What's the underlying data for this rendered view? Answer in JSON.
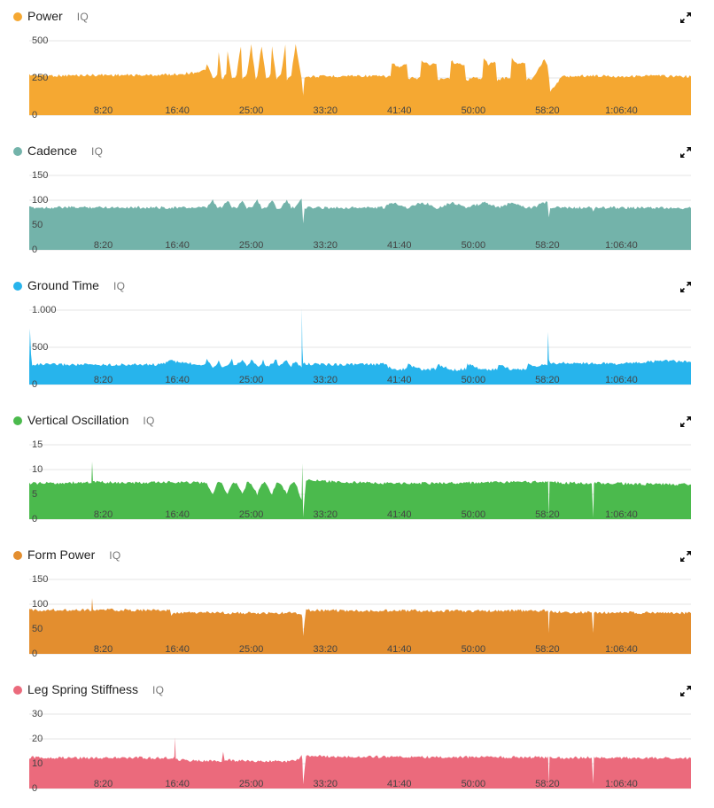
{
  "time_axis": {
    "labels": [
      "8:20",
      "16:40",
      "25:00",
      "33:20",
      "41:40",
      "50:00",
      "58:20",
      "1:06:40"
    ],
    "values_seconds": [
      500,
      1000,
      1500,
      2000,
      2500,
      3000,
      3500,
      4000
    ],
    "xlim_seconds": [
      0,
      4470
    ]
  },
  "iq_label": "IQ",
  "chart_data": [
    {
      "type": "area",
      "title": "Power",
      "color": "#F5A832",
      "ylim": [
        0,
        500
      ],
      "yticks": [
        0,
        250,
        500
      ],
      "ytick_labels": [
        "0",
        "250",
        "500"
      ],
      "x": [
        0,
        200,
        500,
        800,
        1000,
        1100,
        1190,
        1200,
        1240,
        1270,
        1280,
        1300,
        1330,
        1340,
        1370,
        1400,
        1430,
        1440,
        1470,
        1500,
        1530,
        1540,
        1570,
        1600,
        1630,
        1640,
        1670,
        1700,
        1730,
        1740,
        1770,
        1800,
        1840,
        1850,
        1860,
        1880,
        2000,
        2200,
        2400,
        2440,
        2450,
        2500,
        2550,
        2560,
        2600,
        2640,
        2650,
        2700,
        2750,
        2760,
        2800,
        2840,
        2850,
        2900,
        2940,
        2950,
        3000,
        3060,
        3070,
        3100,
        3150,
        3160,
        3200,
        3250,
        3260,
        3300,
        3350,
        3360,
        3400,
        3480,
        3500,
        3510,
        3520,
        3600,
        3800,
        4000,
        4200,
        4400,
        4470
      ],
      "y": [
        270,
        265,
        270,
        268,
        275,
        285,
        300,
        350,
        240,
        270,
        420,
        240,
        270,
        430,
        240,
        270,
        470,
        240,
        270,
        470,
        240,
        270,
        470,
        240,
        270,
        470,
        240,
        270,
        470,
        240,
        270,
        480,
        250,
        140,
        250,
        260,
        260,
        265,
        260,
        260,
        350,
        320,
        340,
        245,
        250,
        250,
        370,
        340,
        345,
        235,
        250,
        250,
        365,
        340,
        345,
        235,
        250,
        250,
        385,
        340,
        355,
        235,
        250,
        250,
        385,
        340,
        355,
        235,
        250,
        380,
        340,
        250,
        160,
        260,
        265,
        260,
        265,
        260,
        260
      ]
    },
    {
      "type": "area",
      "title": "Cadence",
      "color": "#73B3AA",
      "ylim": [
        0,
        150
      ],
      "yticks": [
        0,
        50,
        100,
        150
      ],
      "ytick_labels": [
        "0",
        "50",
        "100",
        "150"
      ],
      "x": [
        0,
        500,
        1000,
        1190,
        1200,
        1240,
        1270,
        1280,
        1300,
        1340,
        1370,
        1380,
        1400,
        1440,
        1470,
        1480,
        1500,
        1540,
        1570,
        1580,
        1600,
        1640,
        1670,
        1680,
        1700,
        1740,
        1770,
        1780,
        1800,
        1840,
        1850,
        1860,
        1880,
        2400,
        2450,
        2500,
        2550,
        2560,
        2650,
        2700,
        2750,
        2760,
        2850,
        2900,
        2950,
        2960,
        3070,
        3120,
        3160,
        3170,
        3260,
        3310,
        3360,
        3370,
        3400,
        3500,
        3510,
        3520,
        3600,
        3800,
        3810,
        3820,
        4000,
        4470
      ],
      "y": [
        85,
        86,
        85,
        85,
        85,
        100,
        85,
        85,
        85,
        100,
        85,
        85,
        85,
        100,
        85,
        85,
        85,
        100,
        85,
        85,
        85,
        100,
        85,
        85,
        85,
        100,
        85,
        85,
        85,
        105,
        55,
        85,
        85,
        85,
        95,
        92,
        85,
        85,
        95,
        92,
        85,
        85,
        95,
        92,
        85,
        85,
        95,
        92,
        85,
        85,
        95,
        92,
        85,
        85,
        85,
        97,
        65,
        85,
        85,
        85,
        75,
        85,
        85,
        84
      ]
    },
    {
      "type": "area",
      "title": "Ground Time",
      "color": "#27B4EC",
      "ylim": [
        0,
        1000
      ],
      "yticks": [
        0,
        500,
        1000
      ],
      "ytick_labels": [
        "0",
        "500",
        "1.000"
      ],
      "x": [
        0,
        5,
        12,
        20,
        500,
        900,
        950,
        1000,
        1150,
        1190,
        1200,
        1240,
        1270,
        1280,
        1300,
        1340,
        1370,
        1380,
        1400,
        1440,
        1470,
        1480,
        1500,
        1540,
        1570,
        1580,
        1600,
        1640,
        1670,
        1680,
        1700,
        1740,
        1770,
        1780,
        1800,
        1840,
        1842,
        1845,
        1850,
        1880,
        2000,
        2300,
        2400,
        2450,
        2500,
        2550,
        2560,
        2650,
        2700,
        2750,
        2760,
        2850,
        2900,
        2950,
        2960,
        3070,
        3120,
        3160,
        3170,
        3260,
        3310,
        3360,
        3370,
        3400,
        3500,
        3505,
        3510,
        3520,
        3600,
        4000,
        4300,
        4470
      ],
      "y": [
        280,
        750,
        400,
        270,
        265,
        270,
        330,
        300,
        270,
        280,
        340,
        240,
        270,
        330,
        240,
        270,
        340,
        240,
        270,
        330,
        240,
        270,
        340,
        240,
        270,
        330,
        240,
        270,
        340,
        240,
        270,
        330,
        240,
        270,
        300,
        240,
        1000,
        500,
        280,
        275,
        270,
        270,
        275,
        200,
        200,
        210,
        270,
        200,
        200,
        210,
        270,
        200,
        200,
        210,
        270,
        200,
        200,
        210,
        270,
        200,
        200,
        210,
        270,
        250,
        270,
        690,
        350,
        280,
        290,
        280,
        320,
        300
      ]
    },
    {
      "type": "area",
      "title": "Vertical Oscillation",
      "color": "#4BBA4D",
      "ylim": [
        0,
        15
      ],
      "yticks": [
        0,
        5,
        10,
        15
      ],
      "ytick_labels": [
        "0",
        "5",
        "10",
        "15"
      ],
      "x": [
        0,
        200,
        420,
        425,
        430,
        700,
        1000,
        1190,
        1200,
        1240,
        1270,
        1280,
        1300,
        1340,
        1370,
        1380,
        1400,
        1440,
        1470,
        1480,
        1500,
        1540,
        1570,
        1580,
        1600,
        1640,
        1670,
        1680,
        1700,
        1740,
        1770,
        1780,
        1800,
        1840,
        1845,
        1850,
        1870,
        1900,
        2200,
        2500,
        2800,
        3100,
        3400,
        3505,
        3510,
        3515,
        3600,
        3800,
        3810,
        3815,
        3830,
        3850,
        4100,
        4470
      ],
      "y": [
        7.2,
        7.3,
        7.4,
        11.5,
        7.5,
        7.3,
        7.5,
        7.3,
        7.3,
        5.0,
        7.3,
        7.3,
        7.3,
        5.0,
        7.3,
        7.3,
        7.3,
        5.0,
        7.3,
        7.3,
        7.3,
        5.0,
        7.3,
        7.3,
        7.3,
        5.0,
        7.3,
        7.3,
        7.3,
        5.0,
        7.3,
        7.3,
        7.3,
        4.0,
        11.0,
        0.5,
        8.0,
        7.8,
        7.4,
        7.2,
        7.3,
        7.4,
        7.5,
        7.6,
        0.5,
        7.6,
        7.3,
        7.3,
        0.5,
        7.2,
        7.4,
        7.3,
        7.1,
        7.0
      ]
    },
    {
      "type": "area",
      "title": "Form Power",
      "color": "#E38E2F",
      "ylim": [
        0,
        150
      ],
      "yticks": [
        0,
        50,
        100,
        150
      ],
      "ytick_labels": [
        "0",
        "50",
        "100",
        "150"
      ],
      "x": [
        0,
        300,
        420,
        425,
        430,
        700,
        950,
        960,
        990,
        1000,
        1100,
        1200,
        1500,
        1800,
        1840,
        1845,
        1850,
        1870,
        1900,
        2200,
        2600,
        3000,
        3400,
        3505,
        3510,
        3515,
        3600,
        3800,
        3810,
        3815,
        3830,
        3850,
        4100,
        4470
      ],
      "y": [
        88,
        89,
        88,
        110,
        89,
        88,
        88,
        78,
        82,
        82,
        83,
        83,
        82,
        82,
        80,
        75,
        35,
        90,
        88,
        87,
        87,
        86,
        87,
        87,
        40,
        85,
        84,
        84,
        40,
        82,
        84,
        83,
        83,
        82
      ]
    },
    {
      "type": "area",
      "title": "Leg Spring Stiffness",
      "color": "#EB6A7C",
      "ylim": [
        0,
        30
      ],
      "yticks": [
        0,
        10,
        20,
        30
      ],
      "ytick_labels": [
        "0",
        "10",
        "20",
        "30"
      ],
      "x": [
        0,
        300,
        600,
        950,
        980,
        985,
        990,
        1000,
        1200,
        1300,
        1310,
        1320,
        1500,
        1800,
        1840,
        1845,
        1850,
        1870,
        2200,
        2600,
        3000,
        3400,
        3505,
        3510,
        3515,
        3600,
        3800,
        3810,
        3815,
        3830,
        4100,
        4470
      ],
      "y": [
        12.5,
        12.4,
        12.4,
        12.3,
        12.4,
        21,
        12,
        11.5,
        11.0,
        11.0,
        15,
        11.5,
        11.0,
        11.0,
        13,
        12,
        2,
        13.0,
        12.8,
        12.7,
        12.6,
        12.6,
        12.6,
        1.5,
        12.5,
        12.4,
        12.5,
        1.5,
        12.4,
        12.4,
        12.3,
        12.2
      ]
    }
  ]
}
